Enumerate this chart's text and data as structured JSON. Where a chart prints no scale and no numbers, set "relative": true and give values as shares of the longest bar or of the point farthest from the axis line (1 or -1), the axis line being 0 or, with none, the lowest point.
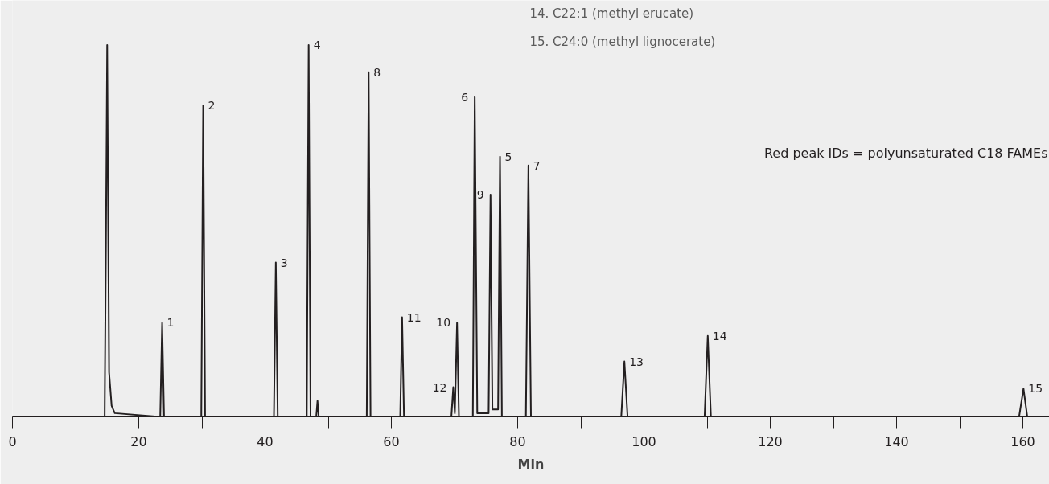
{
  "chart_data": {
    "type": "line",
    "relative": true,
    "xlabel": "Min",
    "xlim": [
      0,
      164.2
    ],
    "xticks": [
      0,
      {
        "value": 10,
        "label": null
      },
      20,
      {
        "value": 30,
        "label": null
      },
      40,
      {
        "value": 50,
        "label": null
      },
      60,
      {
        "value": 70,
        "label": null
      },
      80,
      {
        "value": 90,
        "label": null
      },
      100,
      {
        "value": 110,
        "label": null
      },
      120,
      {
        "value": 130,
        "label": null
      },
      140,
      {
        "value": 150,
        "label": null
      },
      160
    ],
    "grid": false,
    "marker": "none",
    "line_style": "solid",
    "series": [
      {
        "color": "#231f20",
        "x": [
          0,
          14.6,
          14.8,
          15.0,
          15.3,
          15.7,
          16.2,
          23.4,
          23.7,
          24.0,
          29.9,
          30.2,
          30.5,
          41.4,
          41.7,
          42.0,
          46.6,
          46.9,
          47.2,
          48.1,
          48.3,
          48.5,
          56.1,
          56.4,
          56.7,
          61.4,
          61.7,
          62.0,
          69.5,
          69.8,
          70.05,
          70.4,
          70.7,
          72.9,
          73.2,
          73.6,
          75.4,
          75.7,
          76.0,
          76.9,
          77.2,
          77.5,
          81.3,
          81.7,
          82.1,
          96.4,
          96.9,
          97.4,
          109.6,
          110.1,
          110.6,
          159.4,
          160.1,
          160.7,
          164.2
        ],
        "values": [
          0,
          0,
          0.47,
          1.0,
          0.12,
          0.03,
          0.01,
          0,
          0.253,
          0,
          0,
          0.838,
          0,
          0,
          0.415,
          0,
          0,
          1.0,
          0,
          0,
          0.043,
          0,
          0,
          0.927,
          0,
          0,
          0.268,
          0,
          0,
          0.08,
          0.01,
          0.253,
          0,
          0,
          0.86,
          0.01,
          0.01,
          0.598,
          0.02,
          0.02,
          0.7,
          0,
          0,
          0.676,
          0,
          0,
          0.149,
          0,
          0,
          0.218,
          0,
          0,
          0.076,
          0,
          0
        ]
      }
    ],
    "annotations": [
      {
        "text": "1",
        "x": 23.7,
        "y": 0.253
      },
      {
        "text": "2",
        "x": 30.2,
        "y": 0.838
      },
      {
        "text": "3",
        "x": 41.7,
        "y": 0.415
      },
      {
        "text": "4",
        "x": 46.9,
        "y": 1.0
      },
      {
        "text": "8",
        "x": 56.4,
        "y": 0.927
      },
      {
        "text": "11",
        "x": 61.7,
        "y": 0.268
      },
      {
        "text": "12",
        "x": 69.8,
        "y": 0.08
      },
      {
        "text": "10",
        "x": 70.4,
        "y": 0.253
      },
      {
        "text": "6",
        "x": 73.2,
        "y": 0.86
      },
      {
        "text": "9",
        "x": 75.7,
        "y": 0.598
      },
      {
        "text": "5",
        "x": 77.2,
        "y": 0.7
      },
      {
        "text": "7",
        "x": 81.7,
        "y": 0.676
      },
      {
        "text": "13",
        "x": 96.9,
        "y": 0.149
      },
      {
        "text": "14",
        "x": 110.1,
        "y": 0.218
      },
      {
        "text": "15",
        "x": 160.1,
        "y": 0.076
      },
      "14.   C22:1 (methyl erucate)",
      "15.   C24:0 (methyl lignocerate)",
      "Red peak IDs = polyunsaturated C18 FAMEs"
    ]
  }
}
